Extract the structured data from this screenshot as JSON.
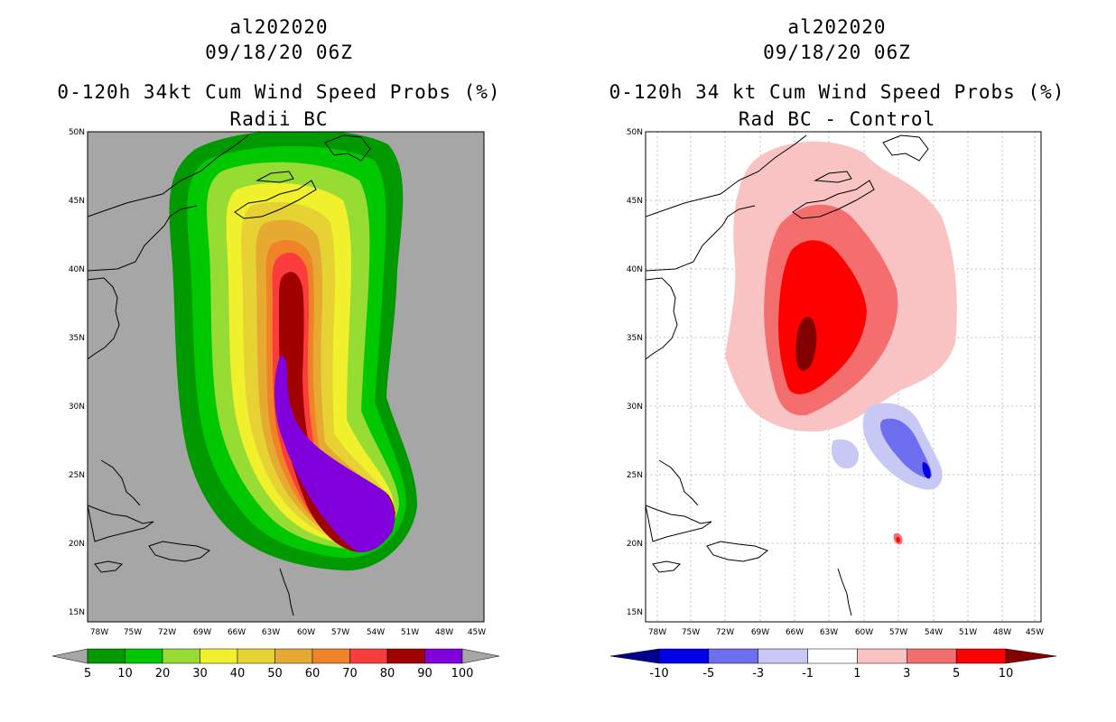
{
  "left_panel": {
    "title_line1": "al202020",
    "title_line2": "09/18/20 06Z",
    "title_line3": "0-120h 34kt Cum Wind Speed Probs (%)",
    "title_line4": "Radii BC",
    "background_color": "#a6a6a6",
    "lat_labels": [
      "50N",
      "45N",
      "40N",
      "35N",
      "30N",
      "25N",
      "20N",
      "15N"
    ],
    "lon_labels": [
      "78W",
      "75W",
      "72W",
      "69W",
      "66W",
      "63W",
      "60W",
      "57W",
      "54W",
      "51W",
      "48W",
      "45W"
    ],
    "colorbar_labels": [
      "5",
      "10",
      "20",
      "30",
      "40",
      "50",
      "60",
      "70",
      "80",
      "90",
      "100"
    ],
    "colorbar_colors": [
      "#009a00",
      "#00c800",
      "#96dc32",
      "#f0f02d",
      "#e6d232",
      "#e6aa32",
      "#f08228",
      "#fa3c3c",
      "#a00000",
      "#8200dc"
    ],
    "colorbar_under": "#a6a6a6",
    "colorbar_over": "#a6a6a6"
  },
  "right_panel": {
    "title_line1": "al202020",
    "title_line2": "09/18/20 06Z",
    "title_line3": "0-120h 34 kt Cum Wind Speed Probs (%)",
    "title_line4": "Rad BC - Control",
    "background_color": "#ffffff",
    "lat_labels": [
      "50N",
      "45N",
      "40N",
      "35N",
      "30N",
      "25N",
      "20N",
      "15N"
    ],
    "lon_labels": [
      "78W",
      "75W",
      "72W",
      "69W",
      "66W",
      "63W",
      "60W",
      "57W",
      "54W",
      "51W",
      "48W",
      "45W"
    ],
    "colorbar_labels": [
      "-10",
      "-5",
      "-3",
      "-1",
      "1",
      "3",
      "5",
      "10"
    ],
    "colorbar_colors": [
      "#0000e6",
      "#6e6ef0",
      "#c8c8f5",
      "#ffffff",
      "#fac3c3",
      "#f56e6e",
      "#ff0000"
    ],
    "colorbar_under": "#00008c",
    "colorbar_over": "#820000"
  }
}
